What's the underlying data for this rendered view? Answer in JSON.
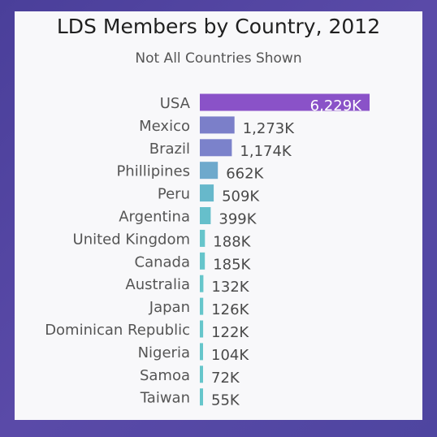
{
  "chart_data": {
    "type": "bar",
    "orientation": "horizontal",
    "title": "LDS Members by Country, 2012",
    "subtitle": "Not All Countries Shown",
    "categories": [
      "USA",
      "Mexico",
      "Brazil",
      "Phillipines",
      "Peru",
      "Argentina",
      "United Kingdom",
      "Canada",
      "Australia",
      "Japan",
      "Dominican Republic",
      "Nigeria",
      "Samoa",
      "Taiwan"
    ],
    "values": [
      6229,
      1273,
      1174,
      662,
      509,
      399,
      188,
      185,
      132,
      126,
      122,
      104,
      72,
      55
    ],
    "value_labels": [
      "6,229K",
      "1,273K",
      "1,174K",
      "662K",
      "509K",
      "399K",
      "188K",
      "185K",
      "132K",
      "126K",
      "122K",
      "104K",
      "72K",
      "55K"
    ],
    "xlim": [
      0,
      6229
    ],
    "grid": false,
    "legend": "none",
    "bar_colors": [
      "#8a52c8",
      "#7b7fc9",
      "#7b82cb",
      "#6ea9cc",
      "#67b8cb",
      "#66bfcb",
      "#66c5cb",
      "#66c5cb",
      "#66c6cb",
      "#66c6cb",
      "#66c6cb",
      "#66c6cb",
      "#66c6cb",
      "#66c6cb"
    ]
  }
}
